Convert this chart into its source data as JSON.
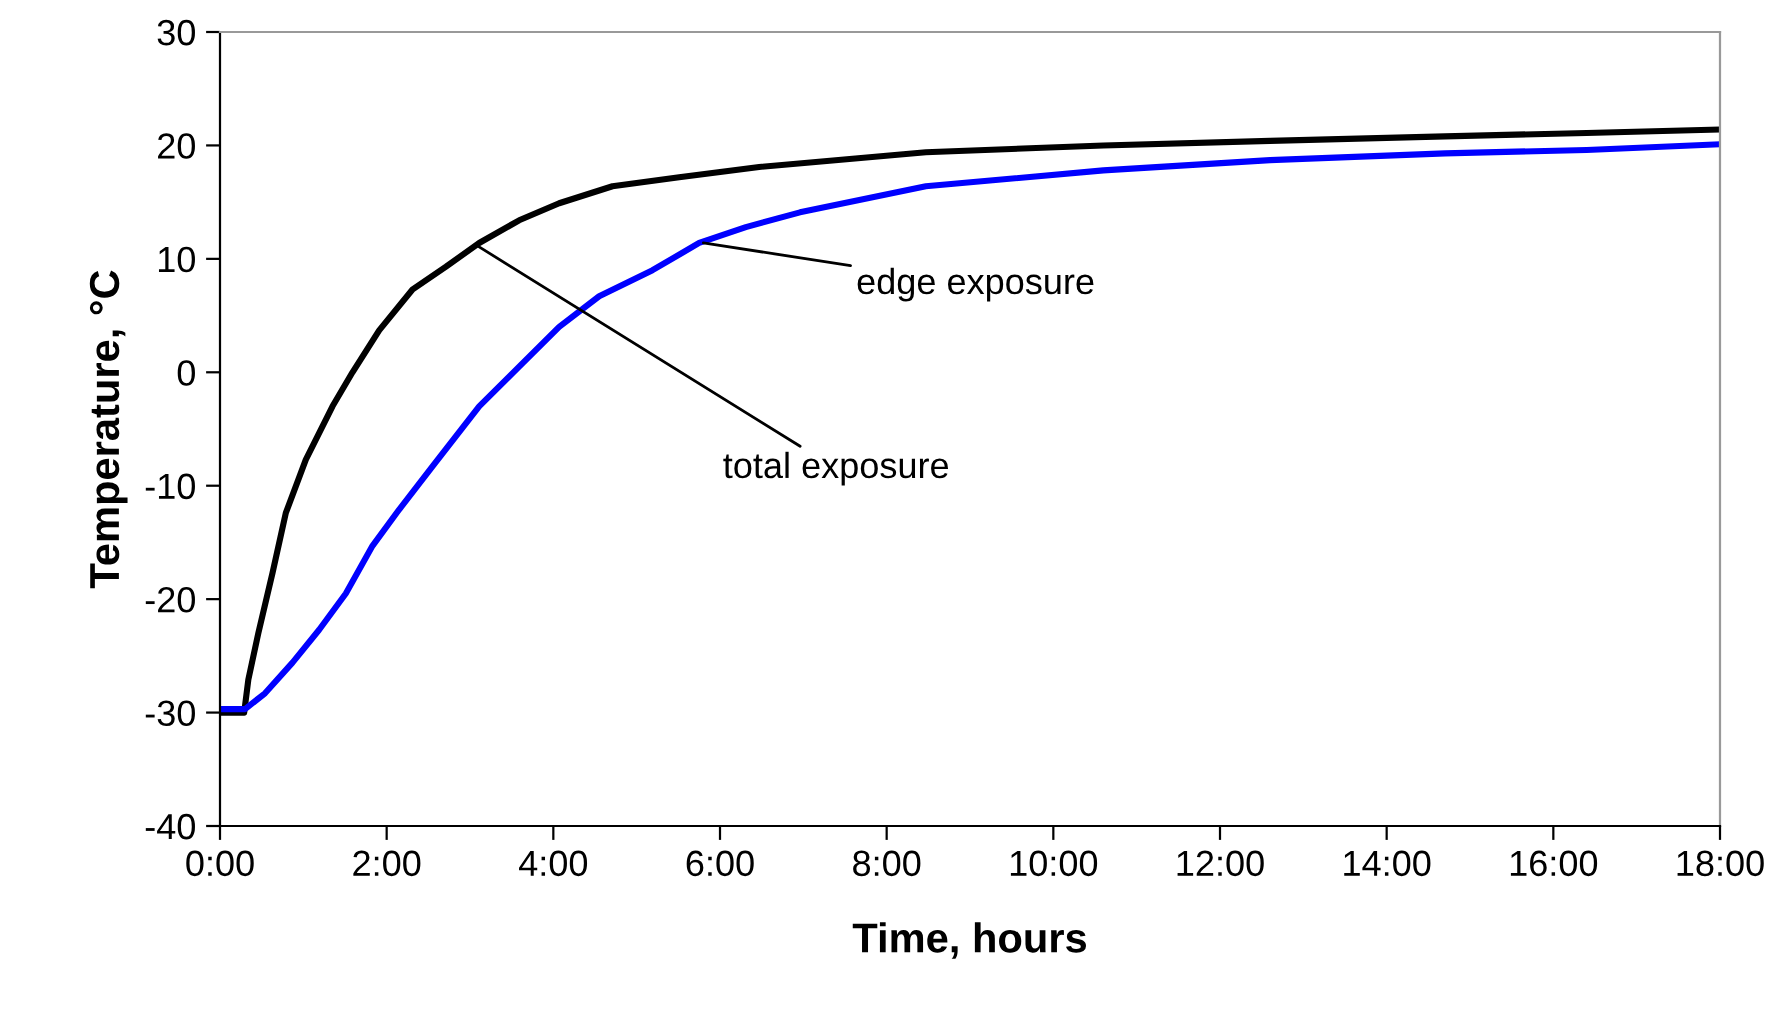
{
  "chart_data": {
    "type": "line",
    "xlabel": "Time, hours",
    "ylabel": "Temperature, °C",
    "xlim": [
      0,
      18
    ],
    "ylim": [
      -40,
      30
    ],
    "xticks": [
      {
        "value": 0,
        "label": "0:00"
      },
      {
        "value": 2,
        "label": "2:00"
      },
      {
        "value": 4,
        "label": "4:00"
      },
      {
        "value": 6,
        "label": "6:00"
      },
      {
        "value": 8,
        "label": "8:00"
      },
      {
        "value": 10,
        "label": "10:00"
      },
      {
        "value": 12,
        "label": "12:00"
      },
      {
        "value": 14,
        "label": "14:00"
      },
      {
        "value": 16,
        "label": "16:00"
      },
      {
        "value": 18,
        "label": "18:00"
      }
    ],
    "yticks": [
      -40,
      -30,
      -20,
      -10,
      0,
      10,
      20,
      30
    ],
    "grid": false,
    "legend": false,
    "marker": "none",
    "line_style": "solid",
    "series": [
      {
        "color": "#000000",
        "x": [
          0,
          0.29,
          0.34,
          0.46,
          0.63,
          0.79,
          1.03,
          1.35,
          1.59,
          1.91,
          2.31,
          2.71,
          3.11,
          3.59,
          4.07,
          4.71,
          5.51,
          6.47,
          8.47,
          10.6,
          12.6,
          14.7,
          16.4,
          18
        ],
        "values": [
          -30,
          -30,
          -27.1,
          -23,
          -17.7,
          -12.4,
          -7.7,
          -3,
          0,
          3.7,
          7.3,
          9.3,
          11.4,
          13.4,
          14.9,
          16.4,
          17.2,
          18.1,
          19.4,
          20.0,
          20.4,
          20.8,
          21.1,
          21.4
        ]
      },
      {
        "color": "#0000ff",
        "x": [
          0,
          0.3,
          0.54,
          0.87,
          1.19,
          1.51,
          1.83,
          2.15,
          2.55,
          3.11,
          3.59,
          4.07,
          4.55,
          5.19,
          5.75,
          6.31,
          6.96,
          8.47,
          10.6,
          12.6,
          14.7,
          16.4,
          18
        ],
        "values": [
          -29.7,
          -29.7,
          -28.3,
          -25.6,
          -22.7,
          -19.5,
          -15.3,
          -12.1,
          -8.3,
          -3,
          0.5,
          4,
          6.7,
          9,
          11.4,
          12.8,
          14.1,
          16.4,
          17.8,
          18.7,
          19.3,
          19.6,
          20.1
        ]
      }
    ],
    "annotations": [
      {
        "text": "total exposure",
        "x": 3.1,
        "y": 11.1
      },
      {
        "text": "edge exposure",
        "x": 5.8,
        "y": 11.4
      }
    ]
  }
}
